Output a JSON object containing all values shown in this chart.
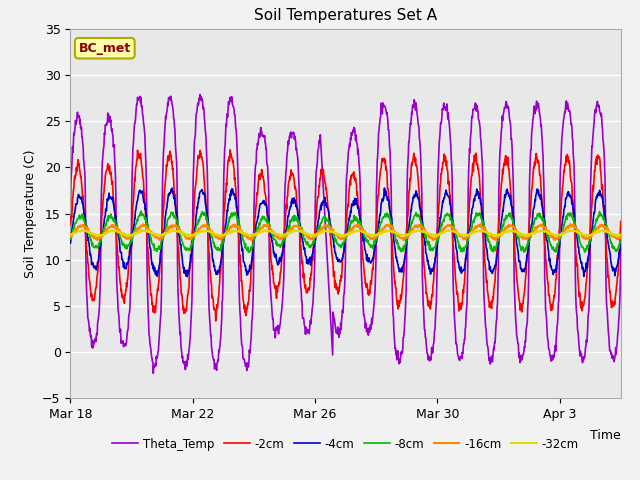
{
  "title": "Soil Temperatures Set A",
  "time_label": "Time",
  "ylabel": "Soil Temperature (C)",
  "ylim": [
    -5,
    35
  ],
  "xlim": [
    0,
    18
  ],
  "fig_bg": "#f2f2f2",
  "plot_bg": "#e8e8e8",
  "annotation_text": "BC_met",
  "annotation_fg": "#8B0000",
  "annotation_bg": "#ffffaa",
  "annotation_edge": "#aaaa00",
  "x_tick_positions": [
    0,
    4,
    8,
    12,
    16
  ],
  "x_tick_labels": [
    "Mar 18",
    "Mar 22",
    "Mar 26",
    "Mar 30",
    "Apr 3"
  ],
  "y_ticks": [
    -5,
    0,
    5,
    10,
    15,
    20,
    25,
    30,
    35
  ],
  "legend_labels": [
    "-2cm",
    "-4cm",
    "-8cm",
    "-16cm",
    "-32cm",
    "Theta_Temp"
  ],
  "line_colors": [
    "#ff0000",
    "#0000cc",
    "#00bb00",
    "#ff8800",
    "#dddd00",
    "#9900cc"
  ],
  "line_width": 1.2
}
